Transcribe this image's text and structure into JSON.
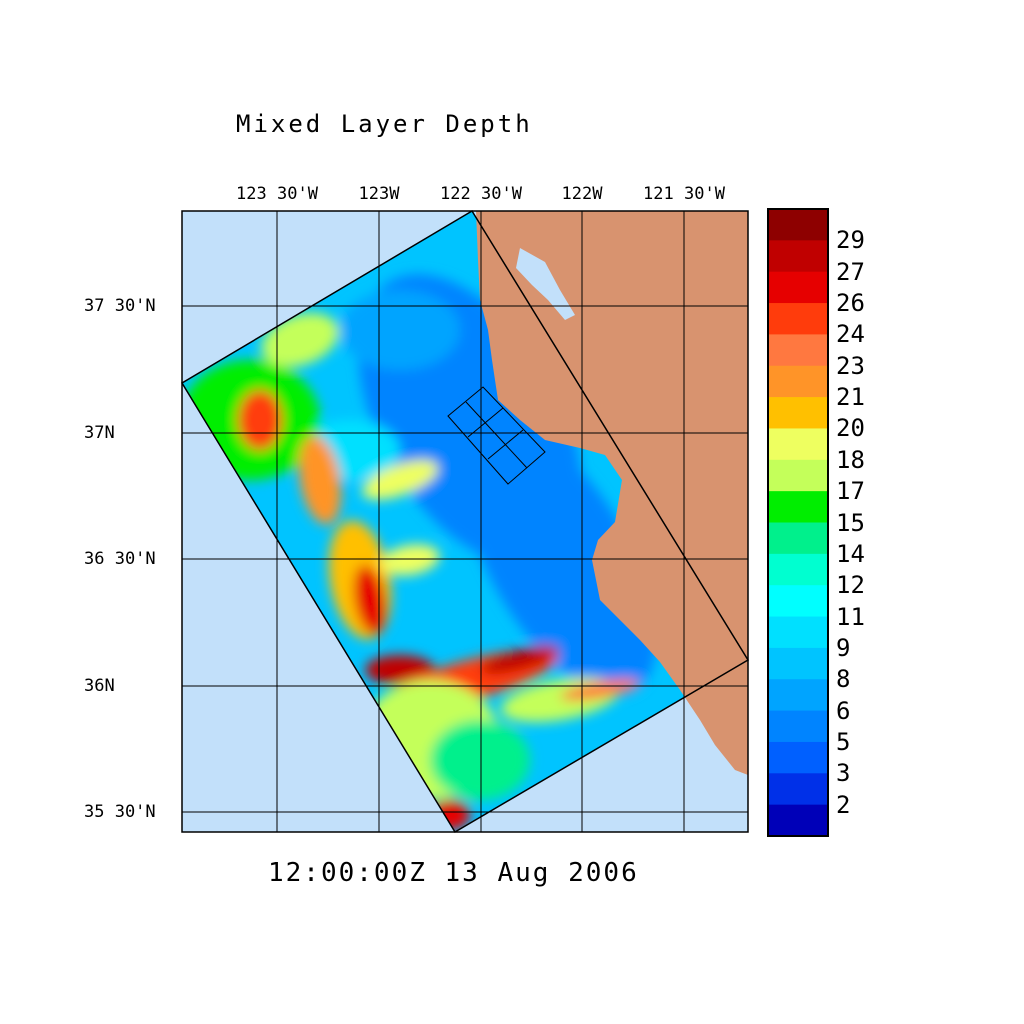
{
  "title": "Mixed Layer Depth",
  "time_label": "12:00:00Z  13 Aug 2006",
  "lon_labels": [
    "123 30'W",
    "123W",
    "122 30'W",
    "122W",
    "121 30'W"
  ],
  "lat_labels": [
    "37 30'N",
    "37N",
    "36 30'N",
    "36N",
    "35 30'N"
  ],
  "colors": {
    "land": "#D8936F",
    "outside_ocean": "#C2E0FA",
    "grid": "#000000"
  },
  "colorbar": {
    "labels": [
      "29",
      "27",
      "26",
      "24",
      "23",
      "21",
      "20",
      "18",
      "17",
      "15",
      "14",
      "12",
      "11",
      "9",
      "8",
      "6",
      "5",
      "3",
      "2"
    ],
    "colors_top_to_bottom": [
      "#8E0000",
      "#C00000",
      "#E60000",
      "#FF3C0C",
      "#FF7840",
      "#FF9428",
      "#FFC000",
      "#EEFF60",
      "#C4FF5A",
      "#00EE00",
      "#00F08C",
      "#00FFD0",
      "#00FFFF",
      "#00E0FF",
      "#00C4FF",
      "#00A4FF",
      "#0084FF",
      "#0060FF",
      "#0030E8",
      "#0000B8"
    ]
  }
}
